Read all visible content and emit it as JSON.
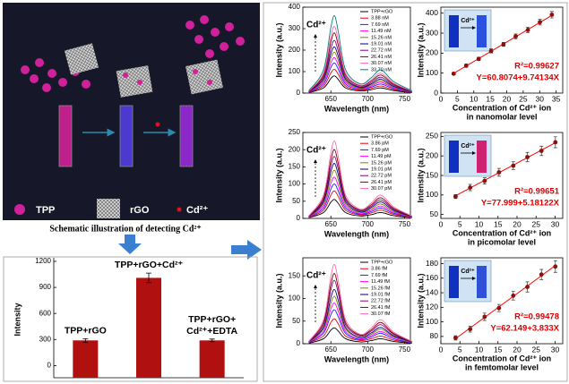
{
  "schematic": {
    "labels": [
      "TPP",
      "rGO",
      "Cd²⁺"
    ],
    "caption": "Schematic illustration of detecting Cd²⁺"
  },
  "chart_data": [
    {
      "type": "bar",
      "ylabel": "Intensity",
      "categories": [
        "TPP+rGO",
        "TPP+rGO+Cd²⁺",
        "TPP+rGO+\nCd²⁺+EDTA"
      ],
      "values": [
        290,
        1010,
        290
      ],
      "errors": [
        20,
        55,
        15
      ],
      "color": "#b01010",
      "ylim": [
        -140,
        1200
      ],
      "yticks": [
        0,
        300,
        600,
        900,
        1200
      ]
    },
    {
      "type": "line",
      "ylabel": "Intensity (a.u.)",
      "xlabel": "Wavelength (nm)",
      "annotation": "Cd²⁺",
      "x": [
        620,
        640,
        650,
        655,
        660,
        670,
        690,
        705,
        718,
        735,
        760
      ],
      "xlim": [
        612,
        758
      ],
      "xticks": [
        650,
        700,
        750
      ],
      "ylim": [
        0,
        400
      ],
      "yticks": [
        0,
        100,
        200,
        300,
        400
      ],
      "series": [
        {
          "name": "TPP+rGO",
          "color": "#000000",
          "values": [
            2,
            24,
            68,
            80,
            64,
            24,
            10,
            16,
            24,
            12,
            2
          ]
        },
        {
          "name": "3.88 nM",
          "color": "#e8000b",
          "values": [
            3,
            33,
            94,
            110,
            88,
            33,
            13,
            22,
            33,
            17,
            3
          ]
        },
        {
          "name": "7.69 nM",
          "color": "#1f1fff",
          "values": [
            4,
            42,
            119,
            140,
            112,
            42,
            17,
            28,
            42,
            21,
            4
          ]
        },
        {
          "name": "11.49 nM",
          "color": "#ff00ff",
          "values": [
            5,
            50,
            140,
            165,
            132,
            50,
            20,
            33,
            50,
            25,
            5
          ]
        },
        {
          "name": "15.26 nM",
          "color": "#808000",
          "values": [
            6,
            57,
            162,
            190,
            152,
            57,
            23,
            38,
            57,
            29,
            6
          ]
        },
        {
          "name": "19.01 nM",
          "color": "#000080",
          "values": [
            6,
            65,
            183,
            215,
            172,
            65,
            26,
            43,
            65,
            32,
            6
          ]
        },
        {
          "name": "22.72 nM",
          "color": "#800080",
          "values": [
            7,
            74,
            208,
            245,
            196,
            74,
            29,
            49,
            74,
            37,
            7
          ]
        },
        {
          "name": "26.41 nM",
          "color": "#800000",
          "values": [
            8,
            84,
            238,
            280,
            224,
            84,
            34,
            56,
            84,
            42,
            8
          ]
        },
        {
          "name": "30.07 nM",
          "color": "#ff69b4",
          "values": [
            9,
            93,
            264,
            310,
            248,
            93,
            37,
            62,
            93,
            47,
            9
          ]
        },
        {
          "name": "33.70 nM",
          "color": "#008080",
          "values": [
            11,
            108,
            306,
            360,
            288,
            108,
            43,
            72,
            108,
            54,
            11
          ]
        }
      ]
    },
    {
      "type": "scatter",
      "ylabel": "Intensity (a.u.)",
      "xlabel": [
        "Concentration of Cd²⁺ ion",
        "in nanomolar level"
      ],
      "inset_label": "Cd²⁺",
      "r2": "R²=0.99627",
      "equation": "Y=60.8074+9.74134X",
      "fit": {
        "intercept": 60.8074,
        "slope": 9.74134
      },
      "color": "#8b1010",
      "fit_color": "#ff0000",
      "x": [
        3.88,
        7.69,
        11.49,
        15.26,
        19.01,
        22.72,
        26.41,
        30.07,
        33.7
      ],
      "values": [
        97,
        137,
        171,
        211,
        244,
        284,
        316,
        355,
        392
      ],
      "errors": [
        6,
        8,
        8,
        10,
        10,
        12,
        14,
        14,
        16
      ],
      "xlim": [
        0,
        37
      ],
      "xticks": [
        0,
        5,
        10,
        15,
        20,
        25,
        30,
        35
      ],
      "ylim": [
        0,
        430
      ],
      "yticks": [
        0,
        100,
        200,
        300,
        400
      ]
    },
    {
      "type": "line",
      "ylabel": "Intensity (a.u.)",
      "xlabel": "Wavelength (nm)",
      "annotation": "Cd²⁺",
      "x": [
        620,
        640,
        650,
        655,
        660,
        670,
        690,
        705,
        718,
        735,
        760
      ],
      "xlim": [
        612,
        758
      ],
      "xticks": [
        650,
        700,
        750
      ],
      "ylim": [
        0,
        250
      ],
      "yticks": [
        0,
        50,
        100,
        150,
        200,
        250
      ],
      "series": [
        {
          "name": "TPP+rGO",
          "color": "#000000",
          "values": [
            2,
            17,
            47,
            55,
            44,
            17,
            7,
            11,
            17,
            8,
            2
          ]
        },
        {
          "name": "3.86 pM",
          "color": "#e8000b",
          "values": [
            2,
            24,
            68,
            80,
            64,
            24,
            10,
            16,
            24,
            12,
            2
          ]
        },
        {
          "name": "7.69 pM",
          "color": "#1f1fff",
          "values": [
            3,
            30,
            85,
            100,
            80,
            30,
            12,
            20,
            30,
            15,
            3
          ]
        },
        {
          "name": "11.49 pM",
          "color": "#ff00ff",
          "values": [
            4,
            36,
            102,
            120,
            96,
            36,
            14,
            24,
            36,
            18,
            4
          ]
        },
        {
          "name": "15.26 pM",
          "color": "#808000",
          "values": [
            4,
            42,
            119,
            140,
            112,
            42,
            17,
            28,
            42,
            21,
            4
          ]
        },
        {
          "name": "19.01 pM",
          "color": "#000080",
          "values": [
            5,
            48,
            136,
            160,
            128,
            48,
            19,
            32,
            48,
            24,
            5
          ]
        },
        {
          "name": "22.72 pM",
          "color": "#800080",
          "values": [
            5,
            54,
            153,
            180,
            144,
            54,
            22,
            36,
            54,
            27,
            5
          ]
        },
        {
          "name": "26.41 pM",
          "color": "#800000",
          "values": [
            6,
            60,
            170,
            200,
            160,
            60,
            24,
            40,
            60,
            30,
            6
          ]
        },
        {
          "name": "30.07 pM",
          "color": "#ff69b4",
          "values": [
            7,
            68,
            191,
            225,
            180,
            68,
            27,
            45,
            68,
            34,
            7
          ]
        }
      ]
    },
    {
      "type": "scatter",
      "ylabel": "Intensity (a.u.)",
      "xlabel": [
        "Concentration of Cd²⁺ ion",
        "in picomolar level"
      ],
      "inset_label": "Cd²⁺",
      "r2": "R²=0.99651",
      "equation": "Y=77.999+5.18122X",
      "fit": {
        "intercept": 77.999,
        "slope": 5.18122
      },
      "color": "#8b1010",
      "fit_color": "#ff0000",
      "x": [
        3.86,
        7.69,
        11.49,
        15.26,
        19.01,
        22.72,
        26.41,
        30.07
      ],
      "values": [
        96,
        119,
        136,
        158,
        175,
        197,
        213,
        235
      ],
      "errors": [
        5,
        8,
        8,
        10,
        10,
        12,
        12,
        14
      ],
      "xlim": [
        0,
        32
      ],
      "xticks": [
        0,
        5,
        10,
        15,
        20,
        25,
        30
      ],
      "ylim": [
        40,
        260
      ],
      "yticks": [
        50,
        100,
        150,
        200,
        250
      ]
    },
    {
      "type": "line",
      "ylabel": "Intensity (a.u.)",
      "xlabel": "Wavelength (nm)",
      "annotation": "Cd²⁺",
      "x": [
        620,
        640,
        650,
        655,
        660,
        670,
        690,
        705,
        718,
        735,
        760
      ],
      "xlim": [
        612,
        758
      ],
      "xticks": [
        650,
        700,
        750
      ],
      "ylim": [
        0,
        190
      ],
      "yticks": [
        0,
        50,
        100,
        150
      ],
      "series": [
        {
          "name": "TPP+rGO",
          "color": "#000000",
          "values": [
            1,
            11,
            30,
            35,
            28,
            11,
            4,
            7,
            11,
            5,
            1
          ]
        },
        {
          "name": "3.86 fM",
          "color": "#e8000b",
          "values": [
            2,
            17,
            47,
            55,
            44,
            17,
            7,
            11,
            17,
            8,
            2
          ]
        },
        {
          "name": "7.69 fM",
          "color": "#1f1fff",
          "values": [
            2,
            23,
            64,
            75,
            60,
            23,
            9,
            15,
            23,
            11,
            2
          ]
        },
        {
          "name": "11.49 fM",
          "color": "#ff00ff",
          "values": [
            3,
            27,
            77,
            90,
            72,
            27,
            11,
            18,
            27,
            14,
            3
          ]
        },
        {
          "name": "15.26 fM",
          "color": "#808000",
          "values": [
            3,
            32,
            89,
            105,
            84,
            32,
            13,
            21,
            32,
            16,
            3
          ]
        },
        {
          "name": "19.01 fM",
          "color": "#000080",
          "values": [
            4,
            36,
            102,
            120,
            96,
            36,
            14,
            24,
            36,
            18,
            4
          ]
        },
        {
          "name": "22.72 fM",
          "color": "#800080",
          "values": [
            4,
            42,
            119,
            140,
            112,
            42,
            17,
            28,
            42,
            21,
            4
          ]
        },
        {
          "name": "26.41 fM",
          "color": "#800000",
          "values": [
            5,
            47,
            132,
            155,
            124,
            47,
            19,
            31,
            47,
            23,
            5
          ]
        },
        {
          "name": "30.07 fM",
          "color": "#ff69b4",
          "values": [
            5,
            53,
            149,
            175,
            140,
            53,
            21,
            35,
            53,
            26,
            5
          ]
        }
      ]
    },
    {
      "type": "scatter",
      "ylabel": "Intensity (a.u.)",
      "xlabel": [
        "Concentration of Cd²⁺ ion",
        "in femtomolar level"
      ],
      "inset_label": "Cd²⁺",
      "r2": "R²=0.99478",
      "equation": "Y=62.149+3.833X",
      "fit": {
        "intercept": 62.149,
        "slope": 3.833
      },
      "color": "#8b1010",
      "fit_color": "#ff0000",
      "x": [
        3.86,
        7.69,
        11.49,
        15.26,
        19.01,
        22.72,
        26.41,
        30.07
      ],
      "values": [
        78,
        90,
        107,
        119,
        136,
        148,
        165,
        176
      ],
      "errors": [
        3,
        4,
        5,
        5,
        6,
        7,
        7,
        8
      ],
      "xlim": [
        0,
        32
      ],
      "xticks": [
        0,
        5,
        10,
        15,
        20,
        25,
        30
      ],
      "ylim": [
        70,
        188
      ],
      "yticks": [
        80,
        100,
        120,
        140,
        160,
        180
      ]
    }
  ]
}
